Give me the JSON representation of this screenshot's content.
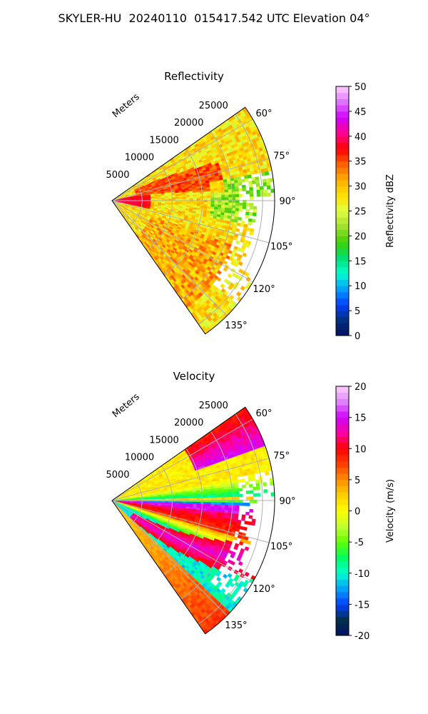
{
  "figure_title": "SKYLER-HU  20240110  015417.542 UTC Elevation 04°",
  "chart_data": [
    {
      "type": "heatmap",
      "subtype": "polar-sector",
      "title": "Reflectivity",
      "range_label": "Meters",
      "range_ticks": [
        5000,
        10000,
        15000,
        20000,
        25000
      ],
      "range_max": 27000,
      "azimuth_ticks": [
        "60°",
        "75°",
        "90°",
        "105°",
        "120°",
        "135°"
      ],
      "azimuth_tick_values": [
        60,
        75,
        90,
        105,
        120,
        135
      ],
      "azimuth_range": [
        55,
        145
      ],
      "grid": true,
      "colorbar": {
        "label": "Reflectivity dBZ",
        "ticks": [
          0,
          5,
          10,
          15,
          20,
          25,
          30,
          35,
          40,
          45,
          50
        ],
        "vmin": 0,
        "vmax": 50,
        "colors": [
          "#001060",
          "#003080",
          "#0040ff",
          "#00a0ff",
          "#00ffd0",
          "#00e070",
          "#40d000",
          "#a0e030",
          "#e0ff40",
          "#ffe000",
          "#ffb000",
          "#ff6000",
          "#ff0000",
          "#ff0090",
          "#d000ff",
          "#e070ff",
          "#ffd0ff"
        ]
      },
      "field_pattern": {
        "base_value": 28,
        "near_range_peak": 40,
        "core_band_value": 35,
        "no_data_region": "outer east edge 80°–130° beyond ~20000 m"
      }
    },
    {
      "type": "heatmap",
      "subtype": "polar-sector",
      "title": "Velocity",
      "range_label": "Meters",
      "range_ticks": [
        5000,
        10000,
        15000,
        20000,
        25000
      ],
      "range_max": 27000,
      "azimuth_ticks": [
        "60°",
        "75°",
        "90°",
        "105°",
        "120°",
        "135°"
      ],
      "azimuth_tick_values": [
        60,
        75,
        90,
        105,
        120,
        135
      ],
      "azimuth_range": [
        55,
        145
      ],
      "grid": true,
      "colorbar": {
        "label": "Velocity (m/s)",
        "ticks": [
          -20,
          -15,
          -10,
          -5,
          0,
          5,
          10,
          15,
          20
        ],
        "vmin": -20,
        "vmax": 20,
        "colors": [
          "#001060",
          "#003050",
          "#0040ff",
          "#00a0ff",
          "#00ffd0",
          "#00ff60",
          "#60ff00",
          "#c0ff30",
          "#ffff00",
          "#ffd000",
          "#ff9000",
          "#ff4000",
          "#ff0000",
          "#ff00a0",
          "#d000ff",
          "#e080ff",
          "#ffd0ff"
        ]
      },
      "field_pattern": {
        "north_value": 0,
        "northeast_outer_value": 15,
        "zero_line_azimuth": 92,
        "south_band_value": 12,
        "southeast_value": -10,
        "no_data_region": "outer east edge 80°–130° beyond ~20000 m"
      }
    }
  ]
}
